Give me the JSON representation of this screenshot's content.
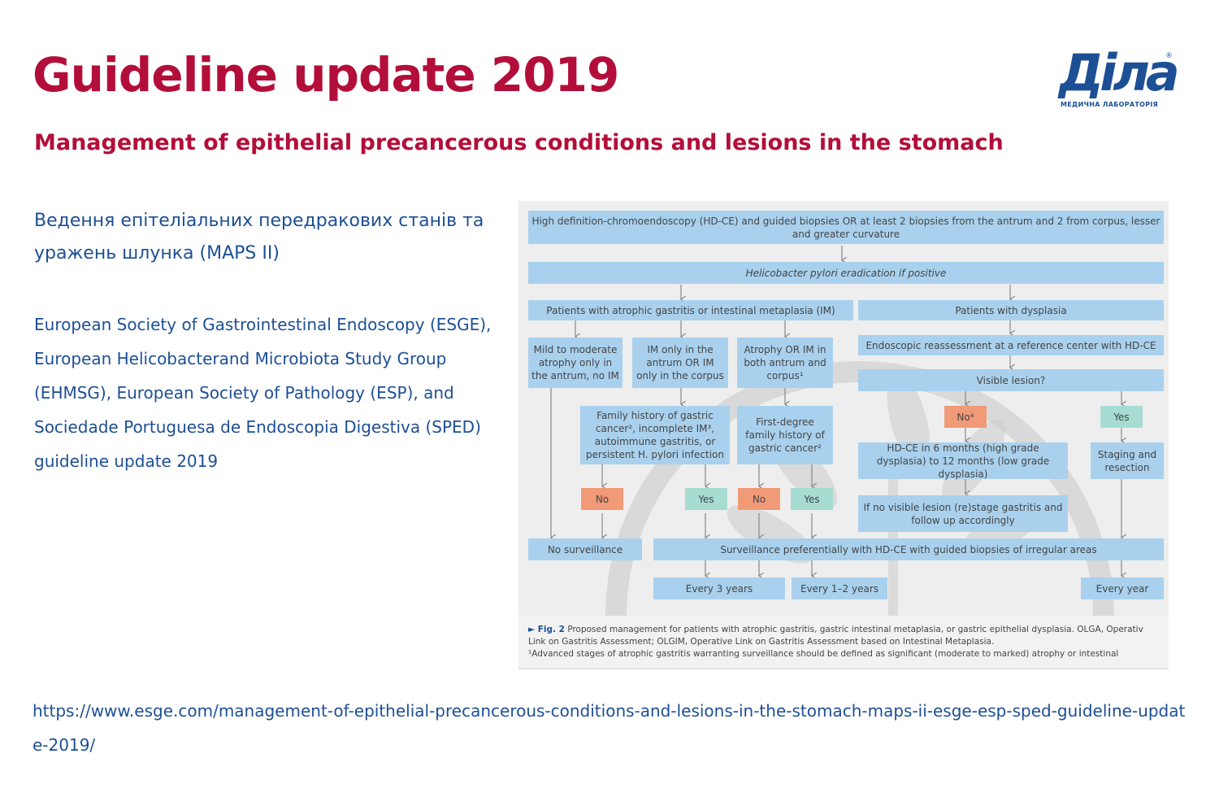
{
  "header": {
    "title": "Guideline update 2019",
    "subtitle": "Management of epithelial precancerous conditions and lesions in the stomach"
  },
  "logo": {
    "word": "Діла",
    "registered": "®",
    "tagline": "МЕДИЧНА ЛАБОРАТОРІЯ",
    "color": "#1d4f95"
  },
  "ua_title": "Ведення епітеліальних передракових станів та уражень шлунка (MAPS II)",
  "organizations": "European Society of Gastrointestinal Endoscopy (ESGE), European Helicobacterand Microbiota Study Group (EHMSG), European Society of Pathology (ESP), and Sociedade Portuguesa de Endoscopia Digestiva (SPED) guideline update 2019",
  "flowchart": {
    "top": "High definition-chromoendoscopy (HD-CE) and guided biopsies OR at least 2 biopsies from the antrum and 2 from corpus, lesser and greater curvature",
    "hp": "Helicobacter pylori eradication if positive",
    "left_header": "Patients with atrophic gastritis or intestinal metaplasia (IM)",
    "right_header": "Patients with dysplasia",
    "mild": "Mild to moderate atrophy only in the antrum, no IM",
    "im_only": "IM only in the antrum OR IM only in the corpus",
    "atrophy_both": "Atrophy OR IM in both antrum and corpus¹",
    "family_history": "Family history of gastric cancer², incomplete IM³, autoimmune gastritis, or persistent H. pylori infection",
    "first_degree": "First-degree family history of gastric cancer²",
    "endoscopic_reassessment": "Endoscopic reassessment at a reference center with HD-CE",
    "visible_lesion": "Visible lesion?",
    "no4": "No⁴",
    "yes_right": "Yes",
    "hdce_months": "HD-CE in 6 months (high grade dysplasia) to 12 months (low grade dysplasia)",
    "staging": "Staging and resection",
    "no_visible": "If no visible lesion (re)stage gastritis and follow up accordingly",
    "no_a": "No",
    "yes_a": "Yes",
    "no_b": "No",
    "yes_b": "Yes",
    "no_surveillance": "No surveillance",
    "surveillance": "Surveillance preferentially with HD-CE with guided biopsies of irregular areas",
    "every3": "Every 3 years",
    "every12": "Every 1–2 years",
    "every_year": "Every year"
  },
  "caption": {
    "fig_label": "► Fig. 2",
    "line1": "Proposed management for patients with atrophic gastritis, gastric intestinal metaplasia, or gastric epithelial dysplasia. OLGA, Operativ",
    "line2": "Link on Gastritis Assessment; OLGIM, Operative Link on Gastritis Assessment based on Intestinal Metaplasia.",
    "line3": "¹Advanced stages of atrophic gastritis warranting surveillance should be defined as significant (moderate to marked) atrophy or intestinal"
  },
  "url": "https://www.esge.com/management-of-epithelial-precancerous-conditions-and-lesions-in-the-stomach-maps-ii-esge-esp-sped-guideline-update-2019/",
  "colors": {
    "accent_red": "#b30e3a",
    "brand_blue": "#1d4f95",
    "box_blue": "#a9d1ee",
    "box_no": "#f19a77",
    "box_yes": "#a7dcd2"
  }
}
